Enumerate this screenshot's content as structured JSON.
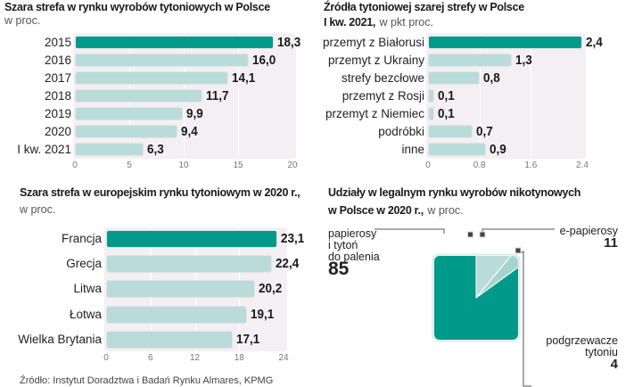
{
  "colors": {
    "highlight": "#009a8a",
    "bar": "#b9dcda",
    "panel": "#f3eff2"
  },
  "chart_data": [
    {
      "type": "bar",
      "orientation": "horizontal",
      "title": "Szara strefa w rynku wyrobów tytoniowych w Polsce",
      "subtitle": "w proc.",
      "categories": [
        "2015",
        "2016",
        "2017",
        "2018",
        "2019",
        "2020",
        "I kw. 2021"
      ],
      "values": [
        18.3,
        16.0,
        14.1,
        11.7,
        9.9,
        9.4,
        6.3
      ],
      "value_labels": [
        "18,3",
        "16,0",
        "14,1",
        "11,7",
        "9,9",
        "9,4",
        "6,3"
      ],
      "xlim": [
        0,
        20
      ],
      "ticks": [
        "0",
        "5",
        "10",
        "15",
        "20"
      ],
      "tick_values": [
        0,
        5,
        10,
        15,
        20
      ],
      "highlight_index": 0
    },
    {
      "type": "bar",
      "orientation": "horizontal",
      "title": "Źródła tytoniowej szarej strefy w Polsce",
      "title_line2": "I kw. 2021,",
      "subtitle": "w pkt proc.",
      "categories": [
        "przemyt z Białorusi",
        "przemyt z Ukrainy",
        "strefy bezcłowe",
        "przemyt z Rosji",
        "przemyt z Niemiec",
        "podróbki",
        "inne"
      ],
      "values": [
        2.4,
        1.3,
        0.8,
        0.1,
        0.1,
        0.7,
        0.9
      ],
      "value_labels": [
        "2,4",
        "1,3",
        "0,8",
        "0,1",
        "0,1",
        "0,7",
        "0,9"
      ],
      "xlim": [
        0,
        2.4
      ],
      "ticks": [
        "0",
        "0.8",
        "1.6",
        "2.4"
      ],
      "tick_values": [
        0,
        0.8,
        1.6,
        2.4
      ],
      "highlight_index": 0
    },
    {
      "type": "bar",
      "orientation": "horizontal",
      "title": "Szara strefa w europejskim rynku tytoniowym w 2020 r.,",
      "subtitle": "w proc.",
      "categories": [
        "Francja",
        "Grecja",
        "Litwa",
        "Łotwa",
        "Wielka Brytania"
      ],
      "values": [
        23.1,
        22.4,
        20.2,
        19.1,
        17.1
      ],
      "value_labels": [
        "23,1",
        "22,4",
        "20,2",
        "19,1",
        "17,1"
      ],
      "xlim": [
        0,
        24
      ],
      "ticks": [
        "0",
        "6",
        "12",
        "18",
        "24"
      ],
      "tick_values": [
        0,
        6,
        12,
        18,
        24
      ],
      "highlight_index": 0
    },
    {
      "type": "pie",
      "title": "Udziały w legalnym rynku wyrobów nikotynowych",
      "title_line2": "w Polsce w 2020 r.,",
      "subtitle": "w proc.",
      "slices": [
        {
          "name_lines": [
            "papierosy",
            "i tytoń",
            "do palenia"
          ],
          "value": 85,
          "label": "85"
        },
        {
          "name_lines": [
            "e-papierosy"
          ],
          "value": 11,
          "label": "11"
        },
        {
          "name_lines": [
            "podgrzewacze",
            "tytoniu"
          ],
          "value": 4,
          "label": "4"
        }
      ]
    }
  ],
  "source": "Źródło: Instytut Doradztwa i Badań Rynku Almares, KPMG"
}
